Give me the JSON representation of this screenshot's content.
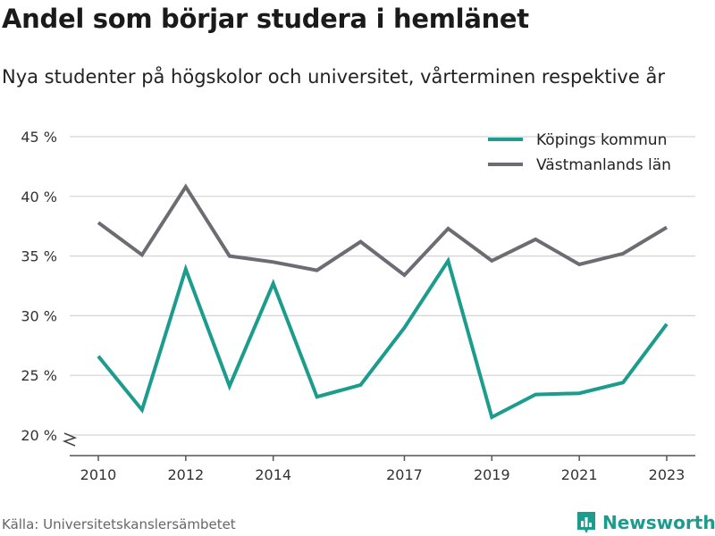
{
  "title": "Andel som börjar studera i hemlänet",
  "subtitle": "Nya studenter på högskolor och universitet, vårterminen respektive år",
  "source": "Källa: Universitetskanslersämbetet",
  "brand": {
    "name": "Newsworthy",
    "icon": "bar-chart-icon",
    "color": "#1c9c8c"
  },
  "chart_data": {
    "type": "line",
    "title": "Andel som börjar studera i hemlänet",
    "subtitle": "Nya studenter på högskolor och universitet, vårterminen respektive år",
    "x": [
      2010,
      2011,
      2012,
      2013,
      2014,
      2015,
      2016,
      2017,
      2018,
      2019,
      2020,
      2021,
      2022,
      2023
    ],
    "x_tick_labels": [
      "2010",
      "2012",
      "2014",
      "2017",
      "2019",
      "2021",
      "2023"
    ],
    "y_tick_labels": [
      "20 %",
      "25 %",
      "30 %",
      "35 %",
      "40 %",
      "45 %"
    ],
    "ylim": [
      20,
      45
    ],
    "y_axis_broken": true,
    "grid": true,
    "legend_position": "top-right",
    "series": [
      {
        "name": "Köpings kommun",
        "color": "#1c9c8c",
        "values": [
          26.6,
          22.1,
          33.9,
          24.1,
          32.7,
          23.2,
          24.2,
          29.0,
          34.6,
          21.5,
          23.4,
          23.5,
          24.4,
          29.3
        ]
      },
      {
        "name": "Västmanlands län",
        "color": "#6d6c72",
        "values": [
          37.8,
          35.1,
          40.8,
          35.0,
          34.5,
          33.8,
          36.2,
          33.4,
          37.3,
          34.6,
          36.4,
          34.3,
          35.2,
          37.4
        ]
      }
    ]
  }
}
